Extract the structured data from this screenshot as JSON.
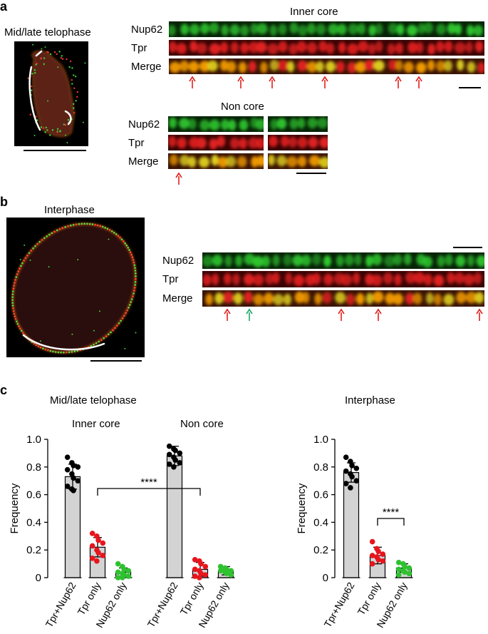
{
  "panel_a": {
    "letter": "a",
    "cell_title": "Mid/late telophase",
    "inner_core_title": "Inner core",
    "non_core_title": "Non core",
    "row_labels": [
      "Nup62",
      "Tpr",
      "Merge"
    ]
  },
  "panel_b": {
    "letter": "b",
    "cell_title": "Interphase",
    "row_labels": [
      "Nup62",
      "Tpr",
      "Merge"
    ]
  },
  "panel_c": {
    "letter": "c",
    "group1_title": "Mid/late telophase",
    "inner_core_label": "Inner core",
    "non_core_label": "Non core",
    "group2_title": "Interphase",
    "ylabel": "Frequency",
    "significance": "****"
  },
  "colors": {
    "nup62": "#2fc92f",
    "tpr": "#e02020",
    "merge": "#f09a00",
    "bar_fill": "#d3d3d3",
    "arrow_red": "#e0201e",
    "arrow_green": "#1aa86a"
  },
  "chart_data": [
    {
      "type": "bar",
      "categories": [
        "Tpr+Nup62",
        "Tpr only",
        "Nup62 only",
        "Tpr+Nup62",
        "Tpr only",
        "Nup62 only"
      ],
      "values": [
        0.73,
        0.22,
        0.04,
        0.88,
        0.06,
        0.05
      ],
      "error": [
        0.09,
        0.07,
        0.03,
        0.07,
        0.05,
        0.03
      ],
      "groups": [
        "Inner core",
        "Non core"
      ],
      "title": "Mid/late telophase",
      "ylabel": "Frequency",
      "ylim": [
        0,
        1.0
      ],
      "yticks": [
        "0",
        "0.2",
        "0.4",
        "0.6",
        "0.8",
        "1.0"
      ],
      "point_colors": [
        "black",
        "red",
        "green",
        "black",
        "red",
        "green"
      ],
      "points": [
        [
          0.87,
          0.83,
          0.81,
          0.8,
          0.78,
          0.75,
          0.72,
          0.7,
          0.66,
          0.64,
          0.63
        ],
        [
          0.32,
          0.3,
          0.27,
          0.25,
          0.23,
          0.2,
          0.18,
          0.16,
          0.14,
          0.12
        ],
        [
          0.1,
          0.08,
          0.06,
          0.05,
          0.04,
          0.03,
          0.02,
          0.01,
          0.0,
          0.0
        ],
        [
          0.95,
          0.93,
          0.92,
          0.9,
          0.89,
          0.87,
          0.85,
          0.83,
          0.82,
          0.8
        ],
        [
          0.13,
          0.12,
          0.1,
          0.08,
          0.06,
          0.05,
          0.03,
          0.02,
          0.01,
          0.0
        ],
        [
          0.08,
          0.07,
          0.06,
          0.05,
          0.05,
          0.04,
          0.03,
          0.02
        ]
      ],
      "annotations": [
        {
          "text": "****",
          "between": [
            "Tpr only",
            "Tpr only"
          ]
        }
      ]
    },
    {
      "type": "bar",
      "categories": [
        "Tpr+Nup62",
        "Tpr only",
        "Nup62 only"
      ],
      "values": [
        0.76,
        0.16,
        0.07
      ],
      "error": [
        0.07,
        0.06,
        0.03
      ],
      "title": "Interphase",
      "ylabel": "Frequency",
      "ylim": [
        0,
        1.0
      ],
      "yticks": [
        "0",
        "0.2",
        "0.4",
        "0.6",
        "0.8",
        "1.0"
      ],
      "point_colors": [
        "black",
        "red",
        "green"
      ],
      "points": [
        [
          0.87,
          0.84,
          0.81,
          0.79,
          0.77,
          0.75,
          0.73,
          0.7,
          0.68,
          0.65
        ],
        [
          0.26,
          0.21,
          0.19,
          0.17,
          0.16,
          0.15,
          0.13,
          0.12,
          0.1
        ],
        [
          0.11,
          0.1,
          0.08,
          0.07,
          0.06,
          0.05,
          0.04,
          0.03,
          0.02
        ]
      ],
      "annotations": [
        {
          "text": "****",
          "between": [
            "Tpr only",
            "Nup62 only"
          ]
        }
      ]
    }
  ]
}
